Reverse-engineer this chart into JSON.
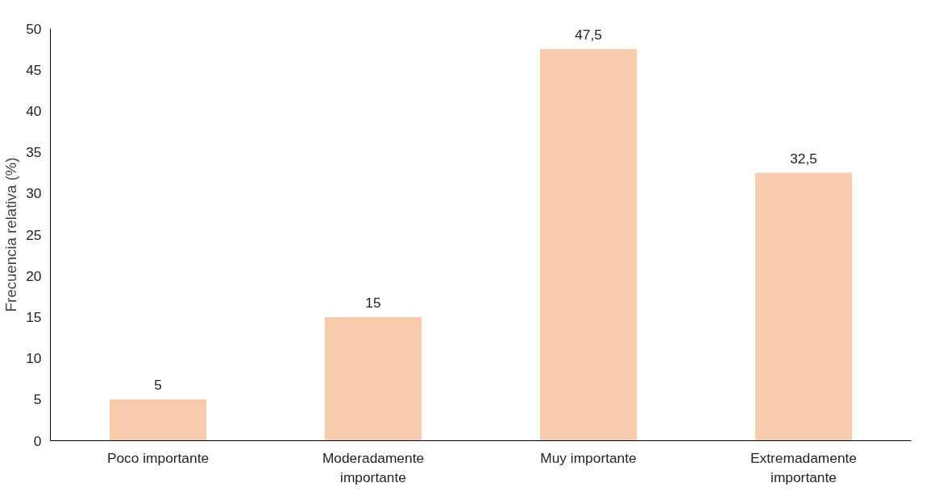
{
  "chart_data": {
    "type": "bar",
    "ylabel": "Frecuencia relativa (%)",
    "categories": [
      "Poco importante",
      "Moderadamente importante",
      "Muy importante",
      "Extremadamente importante"
    ],
    "values": [
      5,
      15,
      47.5,
      32.5
    ],
    "value_labels": [
      "5",
      "15",
      "47,5",
      "32,5"
    ],
    "color": "#f8cbad",
    "ylim": [
      0,
      50
    ],
    "yticks": [
      0,
      5,
      10,
      15,
      20,
      25,
      30,
      35,
      40,
      45,
      50
    ],
    "grid": false
  }
}
